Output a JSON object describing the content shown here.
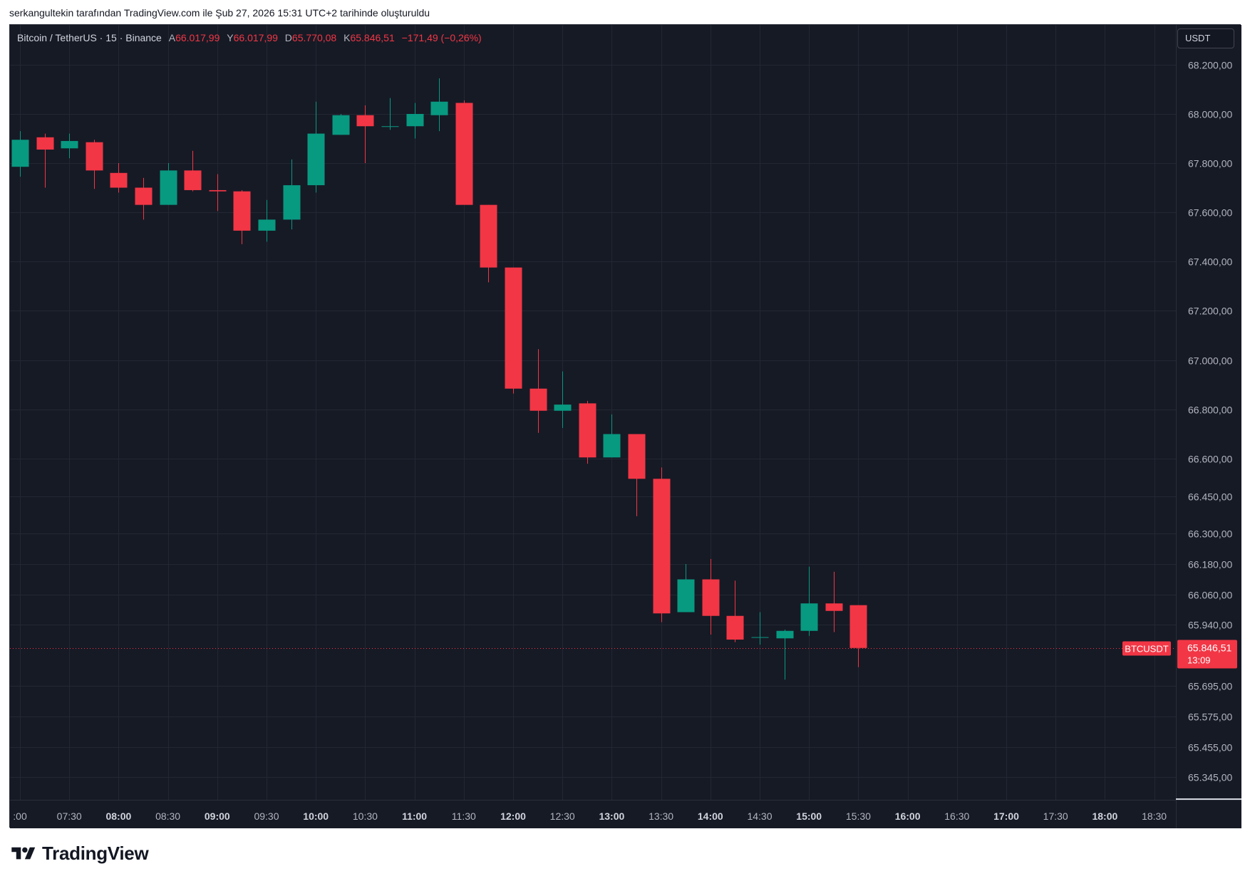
{
  "caption": "serkangultekin tarafından TradingView.com ile Şub 27, 2026 15:31 UTC+2 tarihinde oluşturuldu",
  "legend": {
    "symbol": "Bitcoin / TetherUS · 15 · Binance",
    "open_label": "A",
    "open": "66.017,99",
    "high_label": "Y",
    "high": "66.017,99",
    "low_label": "D",
    "low": "65.770,08",
    "close_label": "K",
    "close": "65.846,51",
    "change": "−171,49 (−0,26%)"
  },
  "currency": "USDT",
  "price_label": {
    "symbol": "BTCUSDT",
    "price": "65.846,51",
    "countdown": "13:09"
  },
  "footer": {
    "logo_text": "TradingView"
  },
  "colors": {
    "background": "#161a25",
    "up": "#089981",
    "down": "#f23645",
    "grid": "#232733",
    "text": "#b2b5be"
  },
  "chart_data": {
    "type": "candlestick",
    "interval_minutes": 15,
    "x_tick_labels": [
      ":00",
      "07:30",
      "08:00",
      "08:30",
      "09:00",
      "09:30",
      "10:00",
      "10:30",
      "11:00",
      "11:30",
      "12:00",
      "12:30",
      "13:00",
      "13:30",
      "14:00",
      "14:30",
      "15:00",
      "15:30",
      "16:00",
      "16:30",
      "17:00",
      "17:30",
      "18:00",
      "18:30"
    ],
    "x_bold_ticks": [
      "08:00",
      "09:00",
      "10:00",
      "11:00",
      "12:00",
      "13:00",
      "14:00",
      "15:00",
      "16:00",
      "17:00",
      "18:00"
    ],
    "x_range": [
      "07:00",
      "18:45"
    ],
    "y_ticks": [
      {
        "value": 68200,
        "label": "68.200,00"
      },
      {
        "value": 68000,
        "label": "68.000,00"
      },
      {
        "value": 67800,
        "label": "67.800,00"
      },
      {
        "value": 67600,
        "label": "67.600,00"
      },
      {
        "value": 67400,
        "label": "67.400,00"
      },
      {
        "value": 67200,
        "label": "67.200,00"
      },
      {
        "value": 67000,
        "label": "67.000,00"
      },
      {
        "value": 66800,
        "label": "66.800,00"
      },
      {
        "value": 66600,
        "label": "66.600,00"
      },
      {
        "value": 66450,
        "label": "66.450,00"
      },
      {
        "value": 66300,
        "label": "66.300,00"
      },
      {
        "value": 66180,
        "label": "66.180,00"
      },
      {
        "value": 66060,
        "label": "66.060,00"
      },
      {
        "value": 65940,
        "label": "65.940,00"
      },
      {
        "value": 65695,
        "label": "65.695,00"
      },
      {
        "value": 65575,
        "label": "65.575,00"
      },
      {
        "value": 65455,
        "label": "65.455,00"
      },
      {
        "value": 65345,
        "label": "65.345,00"
      }
    ],
    "last_price": 65846.51,
    "candles": [
      {
        "t": "07:00",
        "o": 67785,
        "h": 67930,
        "l": 67745,
        "c": 67895
      },
      {
        "t": "07:15",
        "o": 67905,
        "h": 67920,
        "l": 67700,
        "c": 67855
      },
      {
        "t": "07:30",
        "o": 67860,
        "h": 67920,
        "l": 67820,
        "c": 67890
      },
      {
        "t": "07:45",
        "o": 67885,
        "h": 67895,
        "l": 67695,
        "c": 67770
      },
      {
        "t": "08:00",
        "o": 67760,
        "h": 67800,
        "l": 67680,
        "c": 67700
      },
      {
        "t": "08:15",
        "o": 67700,
        "h": 67740,
        "l": 67570,
        "c": 67630
      },
      {
        "t": "08:30",
        "o": 67630,
        "h": 67800,
        "l": 67630,
        "c": 67770
      },
      {
        "t": "08:45",
        "o": 67770,
        "h": 67850,
        "l": 67685,
        "c": 67690
      },
      {
        "t": "09:00",
        "o": 67690,
        "h": 67755,
        "l": 67605,
        "c": 67685
      },
      {
        "t": "09:15",
        "o": 67685,
        "h": 67690,
        "l": 67470,
        "c": 67525
      },
      {
        "t": "09:30",
        "o": 67525,
        "h": 67650,
        "l": 67480,
        "c": 67570
      },
      {
        "t": "09:45",
        "o": 67570,
        "h": 67815,
        "l": 67530,
        "c": 67710
      },
      {
        "t": "10:00",
        "o": 67710,
        "h": 68050,
        "l": 67680,
        "c": 67920
      },
      {
        "t": "10:15",
        "o": 67915,
        "h": 68000,
        "l": 67915,
        "c": 67995
      },
      {
        "t": "10:30",
        "o": 67995,
        "h": 68035,
        "l": 67800,
        "c": 67950
      },
      {
        "t": "10:45",
        "o": 67950,
        "h": 68065,
        "l": 67935,
        "c": 67950
      },
      {
        "t": "11:00",
        "o": 67950,
        "h": 68045,
        "l": 67900,
        "c": 68000
      },
      {
        "t": "11:15",
        "o": 67995,
        "h": 68145,
        "l": 67930,
        "c": 68050
      },
      {
        "t": "11:30",
        "o": 68045,
        "h": 68055,
        "l": 67630,
        "c": 67630
      },
      {
        "t": "11:45",
        "o": 67630,
        "h": 67630,
        "l": 67315,
        "c": 67375
      },
      {
        "t": "12:00",
        "o": 67375,
        "h": 67375,
        "l": 66865,
        "c": 66885
      },
      {
        "t": "12:15",
        "o": 66885,
        "h": 67045,
        "l": 66705,
        "c": 66795
      },
      {
        "t": "12:30",
        "o": 66795,
        "h": 66955,
        "l": 66725,
        "c": 66820
      },
      {
        "t": "12:45",
        "o": 66825,
        "h": 66835,
        "l": 66580,
        "c": 66605
      },
      {
        "t": "13:00",
        "o": 66605,
        "h": 66780,
        "l": 66605,
        "c": 66700
      },
      {
        "t": "13:15",
        "o": 66700,
        "h": 66700,
        "l": 66370,
        "c": 66520
      },
      {
        "t": "13:30",
        "o": 66520,
        "h": 66565,
        "l": 65950,
        "c": 65985
      },
      {
        "t": "13:45",
        "o": 65990,
        "h": 66180,
        "l": 65990,
        "c": 66120
      },
      {
        "t": "14:00",
        "o": 66120,
        "h": 66200,
        "l": 65900,
        "c": 65975
      },
      {
        "t": "14:15",
        "o": 65975,
        "h": 66115,
        "l": 65870,
        "c": 65880
      },
      {
        "t": "14:30",
        "o": 65890,
        "h": 65990,
        "l": 65860,
        "c": 65890
      },
      {
        "t": "14:45",
        "o": 65885,
        "h": 65920,
        "l": 65720,
        "c": 65915
      },
      {
        "t": "15:00",
        "o": 65915,
        "h": 66170,
        "l": 65895,
        "c": 66025
      },
      {
        "t": "15:15",
        "o": 66025,
        "h": 66150,
        "l": 65910,
        "c": 65995
      },
      {
        "t": "15:30",
        "o": 66017.99,
        "h": 66017.99,
        "l": 65770.08,
        "c": 65846.51
      }
    ]
  }
}
